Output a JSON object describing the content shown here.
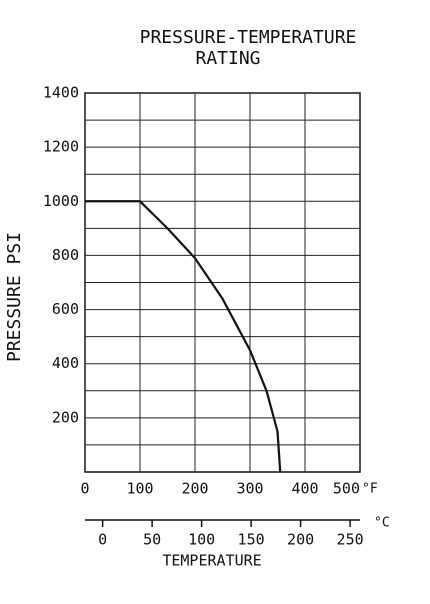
{
  "chart_data": {
    "type": "line",
    "title": "PRESSURE-TEMPERATURE",
    "subtitle": "RATING",
    "ylabel": "PRESSURE PSI",
    "xlabel": "TEMPERATURE",
    "x_unit": "°F",
    "x2_unit": "°C",
    "x": [
      0,
      100,
      150,
      200,
      250,
      300,
      330,
      350,
      355
    ],
    "series": [
      {
        "values": [
          1000,
          1000,
          900,
          790,
          640,
          450,
          300,
          150,
          0
        ],
        "color": "#111111"
      }
    ],
    "xlim": [
      0,
      500
    ],
    "xticks": [
      0,
      100,
      200,
      300,
      400,
      500
    ],
    "ylim": [
      0,
      1400
    ],
    "yticks": [
      200,
      400,
      600,
      800,
      1000,
      1200,
      1400
    ],
    "ygrid_minor": [
      100,
      300,
      500,
      700,
      900,
      1100,
      1300
    ],
    "x2lim": [
      -17.8,
      260
    ],
    "x2ticks": [
      0,
      50,
      100,
      150,
      200,
      250
    ],
    "grid": true
  }
}
